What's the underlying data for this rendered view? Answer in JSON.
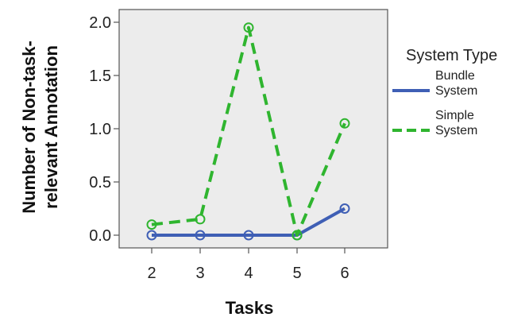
{
  "chart_data": {
    "type": "line",
    "x": [
      2,
      3,
      4,
      5,
      6
    ],
    "categories": [
      "2",
      "3",
      "4",
      "5",
      "6"
    ],
    "series": [
      {
        "name": "Bundle\nSystem",
        "values": [
          0.0,
          0.0,
          0.0,
          0.0,
          0.25
        ],
        "color": "#3f5fb5",
        "line_style": "solid"
      },
      {
        "name": "Simple\nSystem",
        "values": [
          0.1,
          0.15,
          1.95,
          0.0,
          1.05
        ],
        "color": "#2fb52f",
        "line_style": "dashed"
      }
    ],
    "xlabel": "Tasks",
    "ylabel": "Number of Non-task-\nrelevant Annotation",
    "ylim": [
      0.0,
      2.0
    ],
    "yticks": [
      "0.0",
      "0.5",
      "1.0",
      "1.5",
      "2.0"
    ],
    "legend": {
      "title": "System Type",
      "placement": "right"
    },
    "plot_background": "#ececec",
    "grid": false,
    "marker": "circle"
  }
}
